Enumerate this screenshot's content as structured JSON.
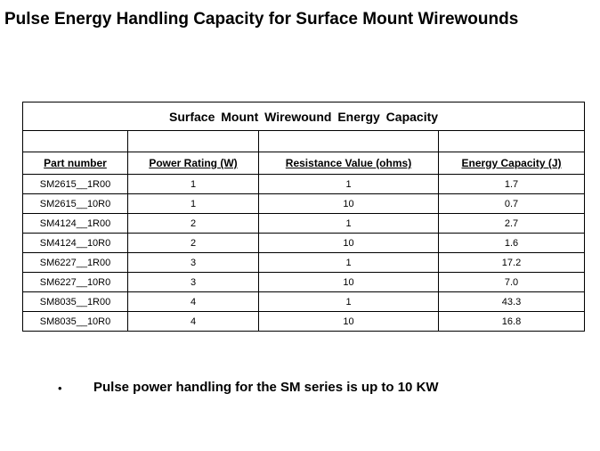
{
  "slide": {
    "title": "Pulse Energy Handling Capacity for Surface Mount Wirewounds"
  },
  "table": {
    "caption": "Surface  Mount  Wirewound  Energy  Capacity",
    "headers": {
      "part_number": "Part number",
      "power_rating": "Power Rating (W)",
      "resistance_value": "Resistance  Value (ohms)",
      "energy_capacity": "Energy Capacity (J)"
    },
    "rows": [
      {
        "part": "SM2615__1R00",
        "power": "1",
        "resistance": "1",
        "energy": "1.7"
      },
      {
        "part": "SM2615__10R0",
        "power": "1",
        "resistance": "10",
        "energy": "0.7"
      },
      {
        "part": "SM4124__1R00",
        "power": "2",
        "resistance": "1",
        "energy": "2.7"
      },
      {
        "part": "SM4124__10R0",
        "power": "2",
        "resistance": "10",
        "energy": "1.6"
      },
      {
        "part": "SM6227__1R00",
        "power": "3",
        "resistance": "1",
        "energy": "17.2"
      },
      {
        "part": "SM6227__10R0",
        "power": "3",
        "resistance": "10",
        "energy": "7.0"
      },
      {
        "part": "SM8035__1R00",
        "power": "4",
        "resistance": "1",
        "energy": "43.3"
      },
      {
        "part": "SM8035__10R0",
        "power": "4",
        "resistance": "10",
        "energy": "16.8"
      }
    ]
  },
  "bullets": [
    {
      "marker": "•",
      "text": "Pulse power handling  for the SM series is up to 10 KW"
    }
  ]
}
